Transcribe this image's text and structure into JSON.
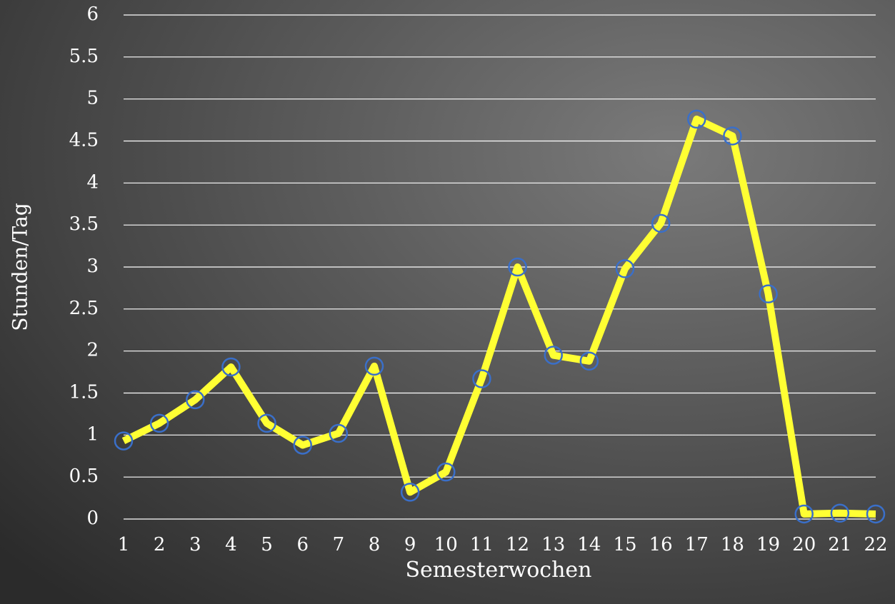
{
  "chart_data": {
    "type": "line",
    "x_label": "Semesterwochen",
    "y_label": "Stunden/Tag",
    "categories": [
      "1",
      "2",
      "3",
      "4",
      "5",
      "6",
      "7",
      "8",
      "9",
      "10",
      "11",
      "12",
      "13",
      "14",
      "15",
      "16",
      "17",
      "18",
      "19",
      "20",
      "21",
      "22"
    ],
    "series": [
      {
        "color": "#ffff33",
        "marker_color": "#3a6fc9",
        "values": [
          0.93,
          1.14,
          1.42,
          1.81,
          1.14,
          0.88,
          1.02,
          1.82,
          0.32,
          0.56,
          1.67,
          3.0,
          1.95,
          1.88,
          2.98,
          3.52,
          4.76,
          4.56,
          2.68,
          0.06,
          0.07,
          0.06
        ]
      }
    ],
    "ylim": [
      0,
      6
    ],
    "yticks": [
      0,
      0.5,
      1,
      1.5,
      2,
      2.5,
      3,
      3.5,
      4,
      4.5,
      5,
      5.5,
      6
    ],
    "grid": true
  }
}
